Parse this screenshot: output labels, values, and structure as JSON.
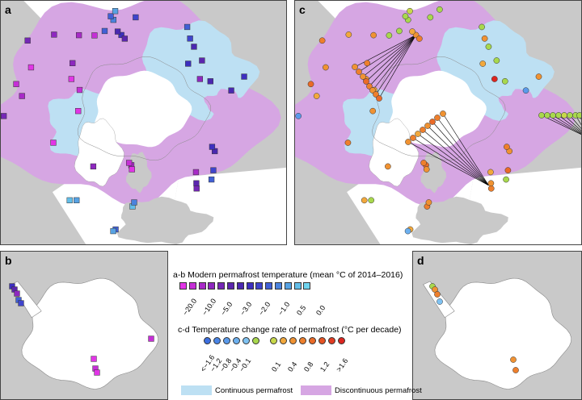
{
  "panels": {
    "a": "a",
    "b": "b",
    "c": "c",
    "d": "d"
  },
  "legend": {
    "modern_title": "a-b Modern permafrost temperature (mean °C of 2014–2016)",
    "modern_colors": [
      "#e135e6",
      "#c52fd6",
      "#a82ac7",
      "#8e28bf",
      "#7527b6",
      "#5b26ad",
      "#4a28b0",
      "#3d2fbf",
      "#3f44cc",
      "#4160d6",
      "#4b82dd",
      "#57a2e3",
      "#63bee9",
      "#6fd4ee"
    ],
    "modern_ticks": [
      "−20.0",
      "−10.0",
      "−5.0",
      "−3.0",
      "−2.0",
      "−1.0",
      "0.5",
      "0.0"
    ],
    "change_title": "c-d Temperature change rate of permafrost (°C per decade)",
    "change_colors_cool": [
      "#3c6fe0",
      "#4a85e6",
      "#5a9aeb",
      "#6cb0ef",
      "#7fc2f2",
      "#a8d84d"
    ],
    "change_colors_warm": [
      "#c8d84a",
      "#f2a83c",
      "#f09232",
      "#ee7f2c",
      "#ea6a27",
      "#e65323",
      "#e23c22",
      "#dc2620"
    ],
    "change_ticks_neg": [
      "<−1.6",
      "−1.2",
      "−0.8",
      "−0.4",
      "−0.1"
    ],
    "change_ticks_pos": [
      "0.1",
      "0.4",
      "0.8",
      "1.2",
      ">1.6"
    ],
    "continuous_label": "Continuous permafrost",
    "discontinuous_label": "Discontinuous permafrost",
    "continuous_color": "#bde0f3",
    "discontinuous_color": "#d6a6e3"
  },
  "map_colors": {
    "sea": "#ffffff",
    "land": "#c9c9c9",
    "ice": "#ffffff"
  },
  "sites": {
    "a": [
      {
        "lon": -150,
        "lat": 70,
        "t": "#3d2fbf"
      },
      {
        "lon": -148,
        "lat": 69,
        "t": "#4a28b0"
      },
      {
        "lon": -152,
        "lat": 71,
        "t": "#5b26ad"
      },
      {
        "lon": -147,
        "lat": 66,
        "t": "#4b82dd"
      },
      {
        "lon": -146,
        "lat": 65,
        "t": "#4160d6"
      },
      {
        "lon": -149,
        "lat": 64,
        "t": "#57a2e3"
      },
      {
        "lon": -160,
        "lat": 66,
        "t": "#3f44cc"
      },
      {
        "lon": -140,
        "lat": 68,
        "t": "#4160d6"
      },
      {
        "lon": -133,
        "lat": 68,
        "t": "#c52fd6"
      },
      {
        "lon": -125,
        "lat": 66,
        "t": "#a82ac7"
      },
      {
        "lon": -115,
        "lat": 62,
        "t": "#8e28bf"
      },
      {
        "lon": -105,
        "lat": 58,
        "t": "#7527b6"
      },
      {
        "lon": -95,
        "lat": 62,
        "t": "#e135e6"
      },
      {
        "lon": -85,
        "lat": 60,
        "t": "#c52fd6"
      },
      {
        "lon": -80,
        "lat": 62,
        "t": "#a82ac7"
      },
      {
        "lon": -100,
        "lat": 72,
        "t": "#e135e6"
      },
      {
        "lon": -110,
        "lat": 70,
        "t": "#8e28bf"
      },
      {
        "lon": -75,
        "lat": 76,
        "t": "#e135e6"
      },
      {
        "lon": -95,
        "lat": 75,
        "t": "#c52fd6"
      },
      {
        "lon": -70,
        "lat": 58,
        "t": "#7527b6"
      },
      {
        "lon": -67,
        "lat": 55,
        "t": "#5b26ad"
      },
      {
        "lon": -78,
        "lat": 56,
        "t": "#4a28b0"
      },
      {
        "lon": -20,
        "lat": 74,
        "t": "#8e28bf"
      },
      {
        "lon": -52,
        "lat": 69,
        "t": "#e135e6"
      },
      {
        "lon": -15,
        "lat": 65,
        "t": "#57a2e3"
      },
      {
        "lon": -18,
        "lat": 64,
        "t": "#63bee9"
      },
      {
        "lon": 15,
        "lat": 78,
        "t": "#a82ac7"
      },
      {
        "lon": 12,
        "lat": 78.5,
        "t": "#c52fd6"
      },
      {
        "lon": 16,
        "lat": 77,
        "t": "#e135e6"
      },
      {
        "lon": 10,
        "lat": 62,
        "t": "#4160d6"
      },
      {
        "lon": 9,
        "lat": 61.5,
        "t": "#57a2e3"
      },
      {
        "lon": 18,
        "lat": 68,
        "t": "#63bee9"
      },
      {
        "lon": 19,
        "lat": 69,
        "t": "#4b82dd"
      },
      {
        "lon": 8,
        "lat": 46,
        "t": "#a82ac7"
      },
      {
        "lon": 10,
        "lat": 47,
        "t": "#c52fd6"
      },
      {
        "lon": -3,
        "lat": 43,
        "t": "#e135e6"
      },
      {
        "lon": 15,
        "lat": 47,
        "t": "#a82ac7"
      },
      {
        "lon": 60,
        "lat": 67,
        "t": "#7527b6"
      },
      {
        "lon": 62,
        "lat": 68,
        "t": "#5b26ad"
      },
      {
        "lon": 70,
        "lat": 66,
        "t": "#4160d6"
      },
      {
        "lon": 75,
        "lat": 67,
        "t": "#3f44cc"
      },
      {
        "lon": 67,
        "lat": 70,
        "t": "#a82ac7"
      },
      {
        "lon": 86,
        "lat": 69,
        "t": "#4a28b0"
      },
      {
        "lon": 88,
        "lat": 70,
        "t": "#3d2fbf"
      },
      {
        "lon": 100,
        "lat": 50,
        "t": "#4b82dd"
      },
      {
        "lon": 102,
        "lat": 51,
        "t": "#57a2e3"
      },
      {
        "lon": 105,
        "lat": 49,
        "t": "#63bee9"
      },
      {
        "lon": 98,
        "lat": 50,
        "t": "#3f44cc"
      },
      {
        "lon": 110,
        "lat": 52,
        "t": "#4160d6"
      },
      {
        "lon": 125,
        "lat": 66,
        "t": "#4a28b0"
      },
      {
        "lon": 130,
        "lat": 62,
        "t": "#3d2fbf"
      },
      {
        "lon": 140,
        "lat": 72,
        "t": "#8e28bf"
      },
      {
        "lon": 150,
        "lat": 69,
        "t": "#5b26ad"
      },
      {
        "lon": 160,
        "lat": 68,
        "t": "#4a28b0"
      },
      {
        "lon": 165,
        "lat": 67,
        "t": "#3f44cc"
      },
      {
        "lon": 170,
        "lat": 65,
        "t": "#4160d6"
      },
      {
        "lon": 155,
        "lat": 72,
        "t": "#3d2fbf"
      },
      {
        "lon": 135,
        "lat": 70,
        "t": "#4a28b0"
      }
    ],
    "c": [
      {
        "lon": -150,
        "lat": 70,
        "t": "#f09232"
      },
      {
        "lon": -148,
        "lat": 69,
        "t": "#f2a83c"
      },
      {
        "lon": -152,
        "lat": 71,
        "t": "#ee7f2c"
      },
      {
        "lon": -147,
        "lat": 66,
        "t": "#a8d84d"
      },
      {
        "lon": -146,
        "lat": 65,
        "t": "#a8d84d"
      },
      {
        "lon": -149,
        "lat": 64,
        "t": "#c8d84a"
      },
      {
        "lon": -160,
        "lat": 66,
        "t": "#a8d84d"
      },
      {
        "lon": -140,
        "lat": 68,
        "t": "#a8d84d"
      },
      {
        "lon": -165,
        "lat": 64,
        "t": "#a8d84d"
      },
      {
        "lon": -133,
        "lat": 68,
        "t": "#a8d84d"
      },
      {
        "lon": -125,
        "lat": 66,
        "t": "#f09232"
      },
      {
        "lon": -115,
        "lat": 62,
        "t": "#f2a83c"
      },
      {
        "lon": -105,
        "lat": 58,
        "t": "#ee7f2c"
      },
      {
        "lon": -95,
        "lat": 62,
        "t": "#f09232"
      },
      {
        "lon": -85,
        "lat": 60,
        "t": "#ea6a27"
      },
      {
        "lon": -80,
        "lat": 62,
        "t": "#f2a83c"
      },
      {
        "lon": -100,
        "lat": 72,
        "t": "#f09232"
      },
      {
        "lon": -110,
        "lat": 70,
        "t": "#ee7f2c"
      },
      {
        "lon": -75,
        "lat": 76,
        "t": "#f09232"
      },
      {
        "lon": -95,
        "lat": 75,
        "t": "#f2a83c"
      },
      {
        "lon": -70,
        "lat": 58,
        "t": "#5a9aeb"
      },
      {
        "lon": -67,
        "lat": 55,
        "t": "#ee7f2c"
      },
      {
        "lon": -78,
        "lat": 56,
        "t": "#f09232"
      },
      {
        "lon": -20,
        "lat": 74,
        "t": "#f09232"
      },
      {
        "lon": -52,
        "lat": 69,
        "t": "#ee7f2c"
      },
      {
        "lon": -15,
        "lat": 65,
        "t": "#a8d84d"
      },
      {
        "lon": -18,
        "lat": 64,
        "t": "#f2a83c"
      },
      {
        "lon": 15,
        "lat": 78,
        "t": "#ea6a27"
      },
      {
        "lon": 12,
        "lat": 78.5,
        "t": "#ee7f2c"
      },
      {
        "lon": 16,
        "lat": 77,
        "t": "#f09232"
      },
      {
        "lon": 10,
        "lat": 62,
        "t": "#f2a83c"
      },
      {
        "lon": 9,
        "lat": 61.5,
        "t": "#6cb0ef"
      },
      {
        "lon": 18,
        "lat": 68,
        "t": "#ee7f2c"
      },
      {
        "lon": 19,
        "lat": 69,
        "t": "#f09232"
      },
      {
        "lon": 8,
        "lat": 46,
        "t": "#ea6a27"
      },
      {
        "lon": 10,
        "lat": 47,
        "t": "#f09232"
      },
      {
        "lon": -3,
        "lat": 43,
        "t": "#ee7f2c"
      },
      {
        "lon": 15,
        "lat": 47,
        "t": "#f2a83c"
      },
      {
        "lon": 60,
        "lat": 67,
        "t": "#ee7f2c"
      },
      {
        "lon": 62,
        "lat": 68,
        "t": "#f09232"
      },
      {
        "lon": 70,
        "lat": 66,
        "t": "#a8d84d"
      },
      {
        "lon": 75,
        "lat": 67,
        "t": "#ea6a27"
      },
      {
        "lon": 67,
        "lat": 70,
        "t": "#f2a83c"
      },
      {
        "lon": 86,
        "lat": 69,
        "t": "#f09232"
      },
      {
        "lon": 88,
        "lat": 70,
        "t": "#ee7f2c"
      },
      {
        "lon": 100,
        "lat": 50,
        "t": "#f09232"
      },
      {
        "lon": 102,
        "lat": 51,
        "t": "#ee7f2c"
      },
      {
        "lon": 105,
        "lat": 49,
        "t": "#a8d84d"
      },
      {
        "lon": 125,
        "lat": 66,
        "t": "#5a9aeb"
      },
      {
        "lon": 130,
        "lat": 62,
        "t": "#f09232"
      },
      {
        "lon": 140,
        "lat": 72,
        "t": "#dc2620"
      },
      {
        "lon": 150,
        "lat": 69,
        "t": "#a8d84d"
      },
      {
        "lon": 160,
        "lat": 68,
        "t": "#a8d84d"
      },
      {
        "lon": 165,
        "lat": 67,
        "t": "#f09232"
      },
      {
        "lon": 170,
        "lat": 65,
        "t": "#a8d84d"
      },
      {
        "lon": 155,
        "lat": 72,
        "t": "#f2a83c"
      },
      {
        "lon": 135,
        "lat": 70,
        "t": "#a8d84d"
      }
    ],
    "c_fans": [
      {
        "lon": -150,
        "lat": 70,
        "pts": [
          {
            "x": 74,
            "y": 82,
            "t": "#f09232"
          },
          {
            "x": 79,
            "y": 88,
            "t": "#ee7f2c"
          },
          {
            "x": 84,
            "y": 94,
            "t": "#f09232"
          },
          {
            "x": 88,
            "y": 100,
            "t": "#ea6a27"
          },
          {
            "x": 92,
            "y": 106,
            "t": "#ee7f2c"
          },
          {
            "x": 96,
            "y": 111,
            "t": "#f09232"
          },
          {
            "x": 100,
            "y": 116,
            "t": "#ee7f2c"
          },
          {
            "x": 104,
            "y": 121,
            "t": "#ea6a27"
          }
        ]
      },
      {
        "lon": 60,
        "lat": 68,
        "pts": [
          {
            "x": 183,
            "y": 140,
            "t": "#f09232"
          },
          {
            "x": 176,
            "y": 145,
            "t": "#ee7f2c"
          },
          {
            "x": 170,
            "y": 150,
            "t": "#ea6a27"
          },
          {
            "x": 164,
            "y": 155,
            "t": "#f09232"
          },
          {
            "x": 158,
            "y": 160,
            "t": "#ee7f2c"
          },
          {
            "x": 152,
            "y": 165,
            "t": "#f2a83c"
          },
          {
            "x": 146,
            "y": 170,
            "t": "#ee7f2c"
          },
          {
            "x": 140,
            "y": 175,
            "t": "#f09232"
          }
        ]
      },
      {
        "lon": 102,
        "lat": 51,
        "pts": [
          {
            "x": 305,
            "y": 142,
            "t": "#a8d84d"
          },
          {
            "x": 312,
            "y": 142,
            "t": "#a8d84d"
          },
          {
            "x": 319,
            "y": 142,
            "t": "#a8d84d"
          },
          {
            "x": 326,
            "y": 142,
            "t": "#a8d84d"
          },
          {
            "x": 333,
            "y": 142,
            "t": "#c8d84a"
          },
          {
            "x": 340,
            "y": 142,
            "t": "#a8d84d"
          },
          {
            "x": 347,
            "y": 142,
            "t": "#a8d84d"
          },
          {
            "x": 352,
            "y": 142,
            "t": "#a8d84d"
          }
        ]
      }
    ],
    "b": [
      {
        "x": 14,
        "y": 43,
        "t": "#3d2fbf"
      },
      {
        "x": 17,
        "y": 47,
        "t": "#5b26ad"
      },
      {
        "x": 20,
        "y": 52,
        "t": "#8e28bf"
      },
      {
        "x": 22,
        "y": 60,
        "t": "#4160d6"
      },
      {
        "x": 25,
        "y": 64,
        "t": "#3f44cc"
      },
      {
        "x": 115,
        "y": 133,
        "t": "#e135e6"
      },
      {
        "x": 117,
        "y": 145,
        "t": "#c52fd6"
      },
      {
        "x": 119,
        "y": 150,
        "t": "#e135e6"
      },
      {
        "x": 186,
        "y": 108,
        "t": "#c52fd6"
      }
    ],
    "d": [
      {
        "x": 24,
        "y": 43,
        "t": "#a8d84d"
      },
      {
        "x": 27,
        "y": 47,
        "t": "#f09232"
      },
      {
        "x": 30,
        "y": 53,
        "t": "#ee7f2c"
      },
      {
        "x": 33,
        "y": 62,
        "t": "#7fc2f2"
      },
      {
        "x": 124,
        "y": 134,
        "t": "#f09232"
      },
      {
        "x": 127,
        "y": 147,
        "t": "#ee7f2c"
      }
    ]
  }
}
